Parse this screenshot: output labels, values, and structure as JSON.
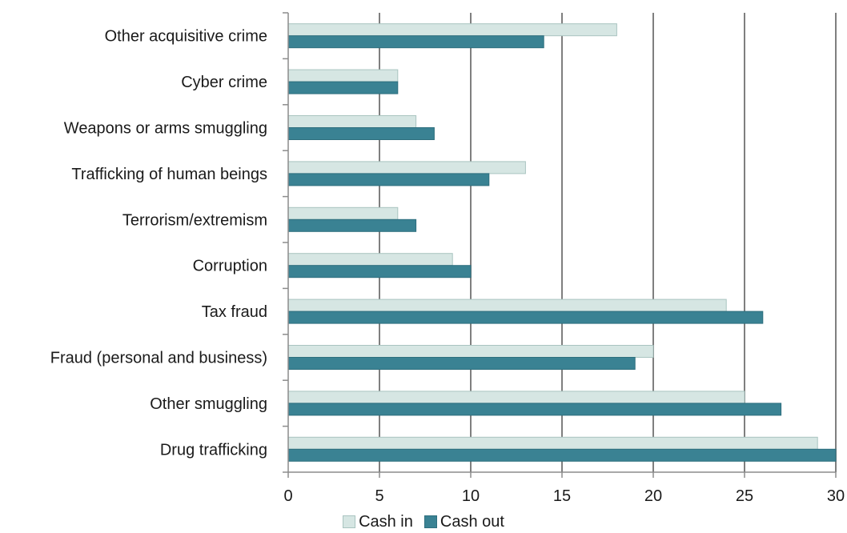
{
  "chart_data": {
    "type": "bar",
    "orientation": "horizontal",
    "categories": [
      "Other acquisitive crime",
      "Cyber crime",
      "Weapons or arms smuggling",
      "Trafficking of human beings",
      "Terrorism/extremism",
      "Corruption",
      "Tax fraud",
      "Fraud (personal and business)",
      "Other smuggling",
      "Drug trafficking"
    ],
    "series": [
      {
        "name": "Cash in",
        "color": "#d6e6e3",
        "stroke": "#a9c4c0",
        "values": [
          18,
          6,
          7,
          13,
          6,
          9,
          24,
          20,
          25,
          29
        ]
      },
      {
        "name": "Cash out",
        "color": "#3a8293",
        "stroke": "#2e6f7e",
        "values": [
          14,
          6,
          8,
          11,
          7,
          10,
          26,
          19,
          27,
          30
        ]
      }
    ],
    "xlim": [
      0,
      30
    ],
    "xticks": [
      "0",
      "5",
      "10",
      "15",
      "20",
      "25",
      "30"
    ],
    "grid": "vertical",
    "legend_position": "bottom-center",
    "gridline_color": "#7f7f7f"
  }
}
